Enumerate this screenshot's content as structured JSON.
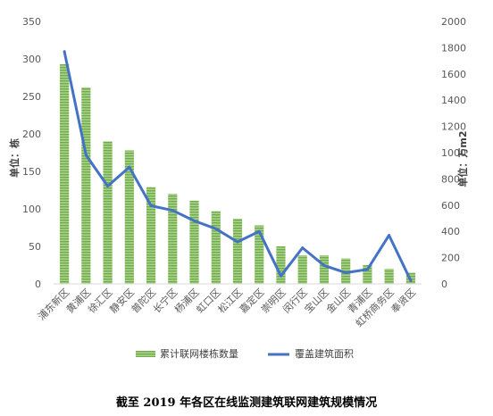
{
  "chart_data": {
    "type": "bar",
    "caption": "截至 2019 年各区在线监测建筑联网建筑规模情况",
    "ylabel_left": "单位：栋",
    "ylabel_right": "单位：万m2",
    "ylim_left": [
      0,
      350
    ],
    "yticks_left": [
      "0",
      "50",
      "100",
      "150",
      "200",
      "250",
      "300",
      "350"
    ],
    "ylim_right": [
      0,
      2000
    ],
    "yticks_right": [
      "0",
      "200",
      "400",
      "600",
      "800",
      "1000",
      "1200",
      "1400",
      "1600",
      "1800",
      "2000"
    ],
    "grid": false,
    "legend_position": "bottom",
    "categories": [
      "浦东新区",
      "黄浦区",
      "徐汇区",
      "静安区",
      "普陀区",
      "长宁区",
      "杨浦区",
      "虹口区",
      "松江区",
      "嘉定区",
      "崇明区",
      "闵行区",
      "宝山区",
      "金山区",
      "青浦区",
      "虹桥商务区",
      "奉贤区"
    ],
    "series": [
      {
        "name": "累计联网楼栋数量",
        "type": "bar",
        "axis": "left",
        "color": "#70AD47",
        "values": [
          293,
          262,
          190,
          178,
          129,
          120,
          111,
          97,
          87,
          78,
          50,
          38,
          38,
          34,
          25,
          20,
          15
        ]
      },
      {
        "name": "覆盖建筑面积",
        "type": "line",
        "axis": "right",
        "color": "#4472C4",
        "values": [
          1770,
          980,
          745,
          890,
          595,
          560,
          480,
          420,
          320,
          400,
          60,
          275,
          140,
          85,
          110,
          370,
          25
        ]
      }
    ]
  }
}
